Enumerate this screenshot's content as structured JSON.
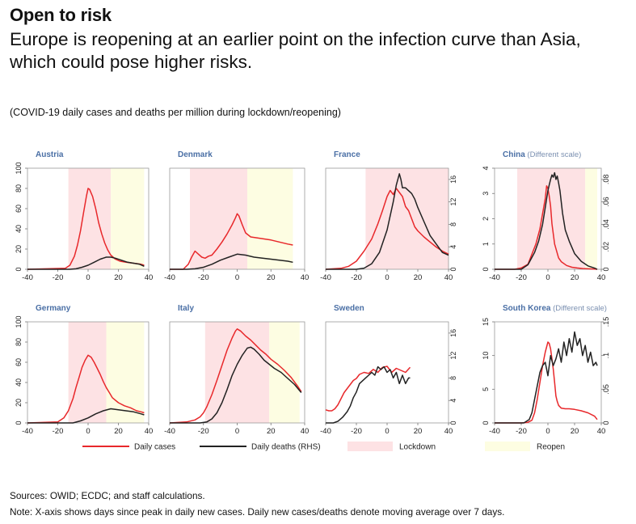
{
  "header": {
    "kicker": "Open to risk",
    "title": "Europe is reopening at an earlier point on the infection curve than Asia, which could pose higher risks.",
    "subtitle": "(COVID-19 daily cases and deaths per million during lockdown/reopening)"
  },
  "footer": {
    "sources": "Sources: OWID; ECDC; and staff calculations.",
    "note": "Note: X-axis shows days since peak in daily new cases. Daily new cases/deaths denote moving average over 7 days."
  },
  "colors": {
    "cases": "#e8282b",
    "deaths": "#222222",
    "lockdown": "#fde2e4",
    "reopen": "#fdfde2",
    "title_blue": "#4a6fa5",
    "subtitle_gray": "#7a8fb0"
  },
  "legend": {
    "items": [
      {
        "label": "Daily cases",
        "kind": "line",
        "color": "#e8282b"
      },
      {
        "label": "Daily deaths (RHS)",
        "kind": "line",
        "color": "#222222"
      },
      {
        "label": "Lockdown",
        "kind": "box",
        "color": "#fde2e4"
      },
      {
        "label": "Reopen",
        "kind": "box",
        "color": "#fdfde2"
      }
    ]
  },
  "chart_data": [
    {
      "type": "line",
      "title": "Austria",
      "title_suffix": "",
      "xlim": [
        -40,
        40
      ],
      "xticks": [
        -40,
        -20,
        0,
        20,
        40
      ],
      "ylim_left": [
        0,
        100
      ],
      "yticks_left": [
        "0",
        "20",
        "40",
        "60",
        "80",
        "100"
      ],
      "ylim_right": [
        0,
        100
      ],
      "yticks_right": [],
      "lockdown": [
        -13,
        15
      ],
      "reopen": [
        15,
        37
      ],
      "series": [
        {
          "name": "Daily cases",
          "axis": "left",
          "x": [
            -40,
            -15,
            -12,
            -9,
            -7,
            -5,
            -3,
            -1,
            0,
            1,
            3,
            5,
            7,
            9,
            11,
            13,
            15,
            18,
            21,
            25,
            30,
            35,
            37
          ],
          "y": [
            0,
            1,
            4,
            13,
            24,
            38,
            56,
            73,
            80,
            79,
            72,
            60,
            46,
            35,
            26,
            19,
            14,
            10,
            8,
            7,
            6,
            5,
            4
          ]
        },
        {
          "name": "Daily deaths (RHS)",
          "axis": "left",
          "x": [
            -40,
            -12,
            -8,
            -4,
            0,
            4,
            8,
            12,
            15,
            18,
            22,
            26,
            30,
            34,
            37
          ],
          "y": [
            0,
            0,
            0.5,
            2,
            4,
            7,
            10,
            12,
            12,
            11,
            9,
            7,
            6,
            5,
            3
          ]
        }
      ]
    },
    {
      "type": "line",
      "title": "Denmark",
      "title_suffix": "",
      "xlim": [
        -40,
        40
      ],
      "xticks": [
        -40,
        -20,
        0,
        20,
        40
      ],
      "ylim_left": [
        0,
        100
      ],
      "yticks_left": [],
      "ylim_right": [
        0,
        100
      ],
      "yticks_right": [],
      "lockdown": [
        -28,
        6
      ],
      "reopen": [
        6,
        33
      ],
      "series": [
        {
          "name": "Daily cases",
          "axis": "left",
          "x": [
            -40,
            -32,
            -29,
            -27,
            -25,
            -23,
            -21,
            -19,
            -17,
            -15,
            -12,
            -9,
            -6,
            -3,
            -1,
            0,
            1,
            3,
            5,
            8,
            12,
            16,
            20,
            25,
            30,
            33
          ],
          "y": [
            0,
            0,
            5,
            12,
            18,
            15,
            12,
            11,
            13,
            14,
            20,
            27,
            35,
            44,
            51,
            55,
            53,
            44,
            36,
            32,
            31,
            30,
            29,
            27,
            25,
            24
          ]
        },
        {
          "name": "Daily deaths (RHS)",
          "axis": "left",
          "x": [
            -40,
            -30,
            -25,
            -20,
            -15,
            -10,
            -5,
            0,
            5,
            10,
            15,
            20,
            25,
            30,
            33
          ],
          "y": [
            0,
            0,
            0.5,
            2,
            5,
            9,
            12,
            15,
            14,
            12,
            11,
            10,
            9,
            8,
            7
          ]
        }
      ]
    },
    {
      "type": "line",
      "title": "France",
      "title_suffix": "",
      "xlim": [
        -40,
        40
      ],
      "xticks": [
        -40,
        -20,
        0,
        20,
        40
      ],
      "ylim_left": [
        0,
        100
      ],
      "yticks_left": [],
      "ylim_right": [
        0,
        18
      ],
      "yticks_right": [
        "0",
        "4",
        "8",
        "12",
        "16"
      ],
      "lockdown": [
        -14,
        40
      ],
      "reopen": [
        40,
        40
      ],
      "series": [
        {
          "name": "Daily cases",
          "axis": "left",
          "x": [
            -40,
            -30,
            -25,
            -20,
            -15,
            -10,
            -6,
            -3,
            0,
            2,
            4,
            6,
            8,
            10,
            12,
            14,
            16,
            18,
            20,
            24,
            28,
            32,
            36,
            40
          ],
          "y": [
            0,
            1,
            3,
            8,
            18,
            30,
            45,
            58,
            72,
            78,
            74,
            80,
            76,
            72,
            62,
            58,
            50,
            42,
            38,
            32,
            27,
            22,
            18,
            15
          ]
        },
        {
          "name": "Daily deaths (RHS)",
          "axis": "right",
          "x": [
            -40,
            -20,
            -15,
            -10,
            -5,
            0,
            2,
            4,
            6,
            8,
            9,
            10,
            12,
            14,
            16,
            18,
            20,
            24,
            28,
            32,
            36,
            40
          ],
          "y": [
            0,
            0,
            0.2,
            1,
            3,
            7,
            9.5,
            12,
            15,
            17,
            16,
            14.5,
            14.5,
            14,
            13.5,
            12.5,
            11,
            8.5,
            6,
            4.5,
            3,
            2.5
          ]
        }
      ]
    },
    {
      "type": "line",
      "title": "China",
      "title_suffix": "(Different scale)",
      "xlim": [
        -40,
        40
      ],
      "xticks": [
        -40,
        -20,
        0,
        20,
        40
      ],
      "ylim_left": [
        0,
        4
      ],
      "yticks_left": [
        "0",
        "1",
        "2",
        "3",
        "4"
      ],
      "ylim_right": [
        0,
        0.09
      ],
      "yticks_right": [
        "0",
        ".02",
        ".04",
        ".06",
        ".08"
      ],
      "lockdown": [
        -23,
        28
      ],
      "reopen": [
        28,
        37
      ],
      "series": [
        {
          "name": "Daily cases",
          "axis": "left",
          "x": [
            -40,
            -30,
            -25,
            -20,
            -15,
            -12,
            -9,
            -6,
            -4,
            -2,
            -1,
            0,
            1,
            2,
            3,
            5,
            8,
            10,
            14,
            18,
            22,
            26,
            30,
            35,
            37
          ],
          "y": [
            0,
            0,
            0,
            0.05,
            0.2,
            0.6,
            1.0,
            1.6,
            2.2,
            2.8,
            3.3,
            3.2,
            2.9,
            2.5,
            1.8,
            1.0,
            0.45,
            0.3,
            0.15,
            0.08,
            0.05,
            0.03,
            0.02,
            0.01,
            0
          ]
        },
        {
          "name": "Daily deaths (RHS)",
          "axis": "right",
          "x": [
            -40,
            -25,
            -20,
            -15,
            -10,
            -7,
            -4,
            -2,
            0,
            1,
            2,
            3,
            4,
            5,
            6,
            7,
            8,
            9,
            11,
            13,
            16,
            20,
            25,
            30,
            35,
            37
          ],
          "y": [
            0,
            0,
            0,
            0.004,
            0.015,
            0.025,
            0.04,
            0.055,
            0.07,
            0.075,
            0.08,
            0.084,
            0.082,
            0.086,
            0.08,
            0.083,
            0.077,
            0.07,
            0.05,
            0.035,
            0.025,
            0.014,
            0.007,
            0.003,
            0.001,
            0
          ]
        }
      ]
    },
    {
      "type": "line",
      "title": "Germany",
      "title_suffix": "",
      "xlim": [
        -40,
        40
      ],
      "xticks": [
        -40,
        -20,
        0,
        20,
        40
      ],
      "ylim_left": [
        0,
        100
      ],
      "yticks_left": [
        "0",
        "20",
        "40",
        "60",
        "80",
        "100"
      ],
      "ylim_right": [
        0,
        100
      ],
      "yticks_right": [],
      "lockdown": [
        -13,
        12
      ],
      "reopen": [
        12,
        37
      ],
      "series": [
        {
          "name": "Daily cases",
          "axis": "left",
          "x": [
            -40,
            -20,
            -16,
            -13,
            -10,
            -8,
            -6,
            -4,
            -2,
            0,
            2,
            4,
            6,
            8,
            10,
            12,
            14,
            16,
            20,
            24,
            28,
            32,
            35,
            37
          ],
          "y": [
            0,
            1,
            5,
            12,
            24,
            35,
            45,
            55,
            62,
            67,
            65,
            60,
            54,
            48,
            41,
            35,
            30,
            25,
            20,
            17,
            15,
            12,
            11,
            10
          ]
        },
        {
          "name": "Daily deaths (RHS)",
          "axis": "left",
          "x": [
            -40,
            -10,
            -5,
            0,
            5,
            10,
            15,
            20,
            25,
            30,
            35,
            37
          ],
          "y": [
            0,
            0,
            2,
            5,
            9,
            12,
            14,
            13,
            12,
            11,
            9,
            8
          ]
        }
      ]
    },
    {
      "type": "line",
      "title": "Italy",
      "title_suffix": "",
      "xlim": [
        -40,
        40
      ],
      "xticks": [
        -40,
        -20,
        0,
        20,
        40
      ],
      "ylim_left": [
        0,
        100
      ],
      "yticks_left": [],
      "ylim_right": [
        0,
        100
      ],
      "yticks_right": [],
      "lockdown": [
        -19,
        19
      ],
      "reopen": [
        19,
        37
      ],
      "series": [
        {
          "name": "Daily cases",
          "axis": "left",
          "x": [
            -40,
            -30,
            -25,
            -22,
            -20,
            -18,
            -15,
            -12,
            -9,
            -6,
            -3,
            -1,
            0,
            2,
            5,
            8,
            11,
            14,
            17,
            20,
            24,
            28,
            32,
            36,
            38
          ],
          "y": [
            0,
            1,
            3,
            6,
            10,
            16,
            28,
            42,
            57,
            72,
            84,
            91,
            93,
            91,
            86,
            82,
            77,
            72,
            68,
            63,
            58,
            52,
            45,
            36,
            31
          ]
        },
        {
          "name": "Daily deaths (RHS)",
          "axis": "left",
          "x": [
            -40,
            -22,
            -18,
            -15,
            -12,
            -9,
            -6,
            -3,
            0,
            3,
            6,
            8,
            10,
            13,
            16,
            19,
            22,
            26,
            30,
            34,
            38
          ],
          "y": [
            0,
            0,
            1,
            4,
            10,
            20,
            33,
            47,
            58,
            67,
            74,
            75,
            73,
            68,
            62,
            58,
            54,
            50,
            44,
            38,
            30
          ]
        }
      ]
    },
    {
      "type": "line",
      "title": "Sweden",
      "title_suffix": "",
      "xlim": [
        -40,
        40
      ],
      "xticks": [
        -40,
        -20,
        0,
        20,
        40
      ],
      "ylim_left": [
        0,
        100
      ],
      "yticks_left": [],
      "ylim_right": [
        0,
        18
      ],
      "yticks_right": [
        "0",
        "4",
        "8",
        "12",
        "16"
      ],
      "lockdown": [
        0,
        0
      ],
      "reopen": [
        0,
        0
      ],
      "series": [
        {
          "name": "Daily cases",
          "axis": "left",
          "x": [
            -40,
            -38,
            -36,
            -34,
            -32,
            -30,
            -28,
            -25,
            -22,
            -20,
            -18,
            -15,
            -12,
            -9,
            -6,
            -3,
            0,
            3,
            6,
            9,
            12,
            15
          ],
          "y": [
            13,
            12,
            12,
            14,
            18,
            24,
            30,
            36,
            42,
            44,
            48,
            50,
            49,
            53,
            50,
            55,
            56,
            50,
            54,
            52,
            50,
            55
          ]
        },
        {
          "name": "Daily deaths (RHS)",
          "axis": "right",
          "x": [
            -40,
            -35,
            -32,
            -29,
            -26,
            -24,
            -22,
            -20,
            -18,
            -16,
            -14,
            -12,
            -10,
            -8,
            -6,
            -4,
            -2,
            0,
            2,
            4,
            6,
            8,
            10,
            12,
            14,
            15
          ],
          "y": [
            0,
            0,
            0.3,
            1,
            2,
            3,
            4.5,
            5.5,
            7,
            7.5,
            8,
            8.5,
            9,
            8.5,
            10,
            9.5,
            10,
            9,
            9.5,
            8,
            9,
            7,
            8.5,
            7,
            8,
            8
          ]
        }
      ]
    },
    {
      "type": "line",
      "title": "South Korea",
      "title_suffix": "(Different scale)",
      "xlim": [
        -40,
        40
      ],
      "xticks": [
        -40,
        -20,
        0,
        20,
        40
      ],
      "ylim_left": [
        0,
        15
      ],
      "yticks_left": [
        "0",
        "5",
        "10",
        "15"
      ],
      "ylim_right": [
        0,
        0.15
      ],
      "yticks_right": [
        "0",
        ".05",
        ".1",
        ".15"
      ],
      "lockdown": [
        0,
        0
      ],
      "reopen": [
        0,
        0
      ],
      "series": [
        {
          "name": "Daily cases",
          "axis": "left",
          "x": [
            -40,
            -20,
            -15,
            -12,
            -10,
            -8,
            -6,
            -4,
            -2,
            0,
            1,
            2,
            3,
            4,
            5,
            6,
            7,
            8,
            10,
            13,
            16,
            20,
            25,
            30,
            35,
            37
          ],
          "y": [
            0,
            0,
            0.1,
            0.4,
            1.5,
            3.5,
            6,
            8.5,
            10.5,
            12,
            11.8,
            11,
            9.5,
            8,
            6,
            4,
            3.2,
            2.6,
            2.2,
            2.1,
            2.1,
            2,
            1.8,
            1.5,
            1,
            0.5
          ]
        },
        {
          "name": "Daily deaths (RHS)",
          "axis": "right",
          "x": [
            -40,
            -18,
            -14,
            -12,
            -10,
            -8,
            -6,
            -4,
            -2,
            0,
            2,
            4,
            6,
            8,
            10,
            12,
            14,
            16,
            18,
            20,
            22,
            24,
            26,
            28,
            30,
            32,
            34,
            36,
            37
          ],
          "y": [
            0,
            0,
            0.005,
            0.015,
            0.035,
            0.055,
            0.075,
            0.085,
            0.09,
            0.07,
            0.1,
            0.085,
            0.095,
            0.11,
            0.09,
            0.12,
            0.1,
            0.125,
            0.105,
            0.135,
            0.115,
            0.125,
            0.1,
            0.115,
            0.09,
            0.105,
            0.085,
            0.09,
            0.085
          ]
        }
      ]
    }
  ]
}
